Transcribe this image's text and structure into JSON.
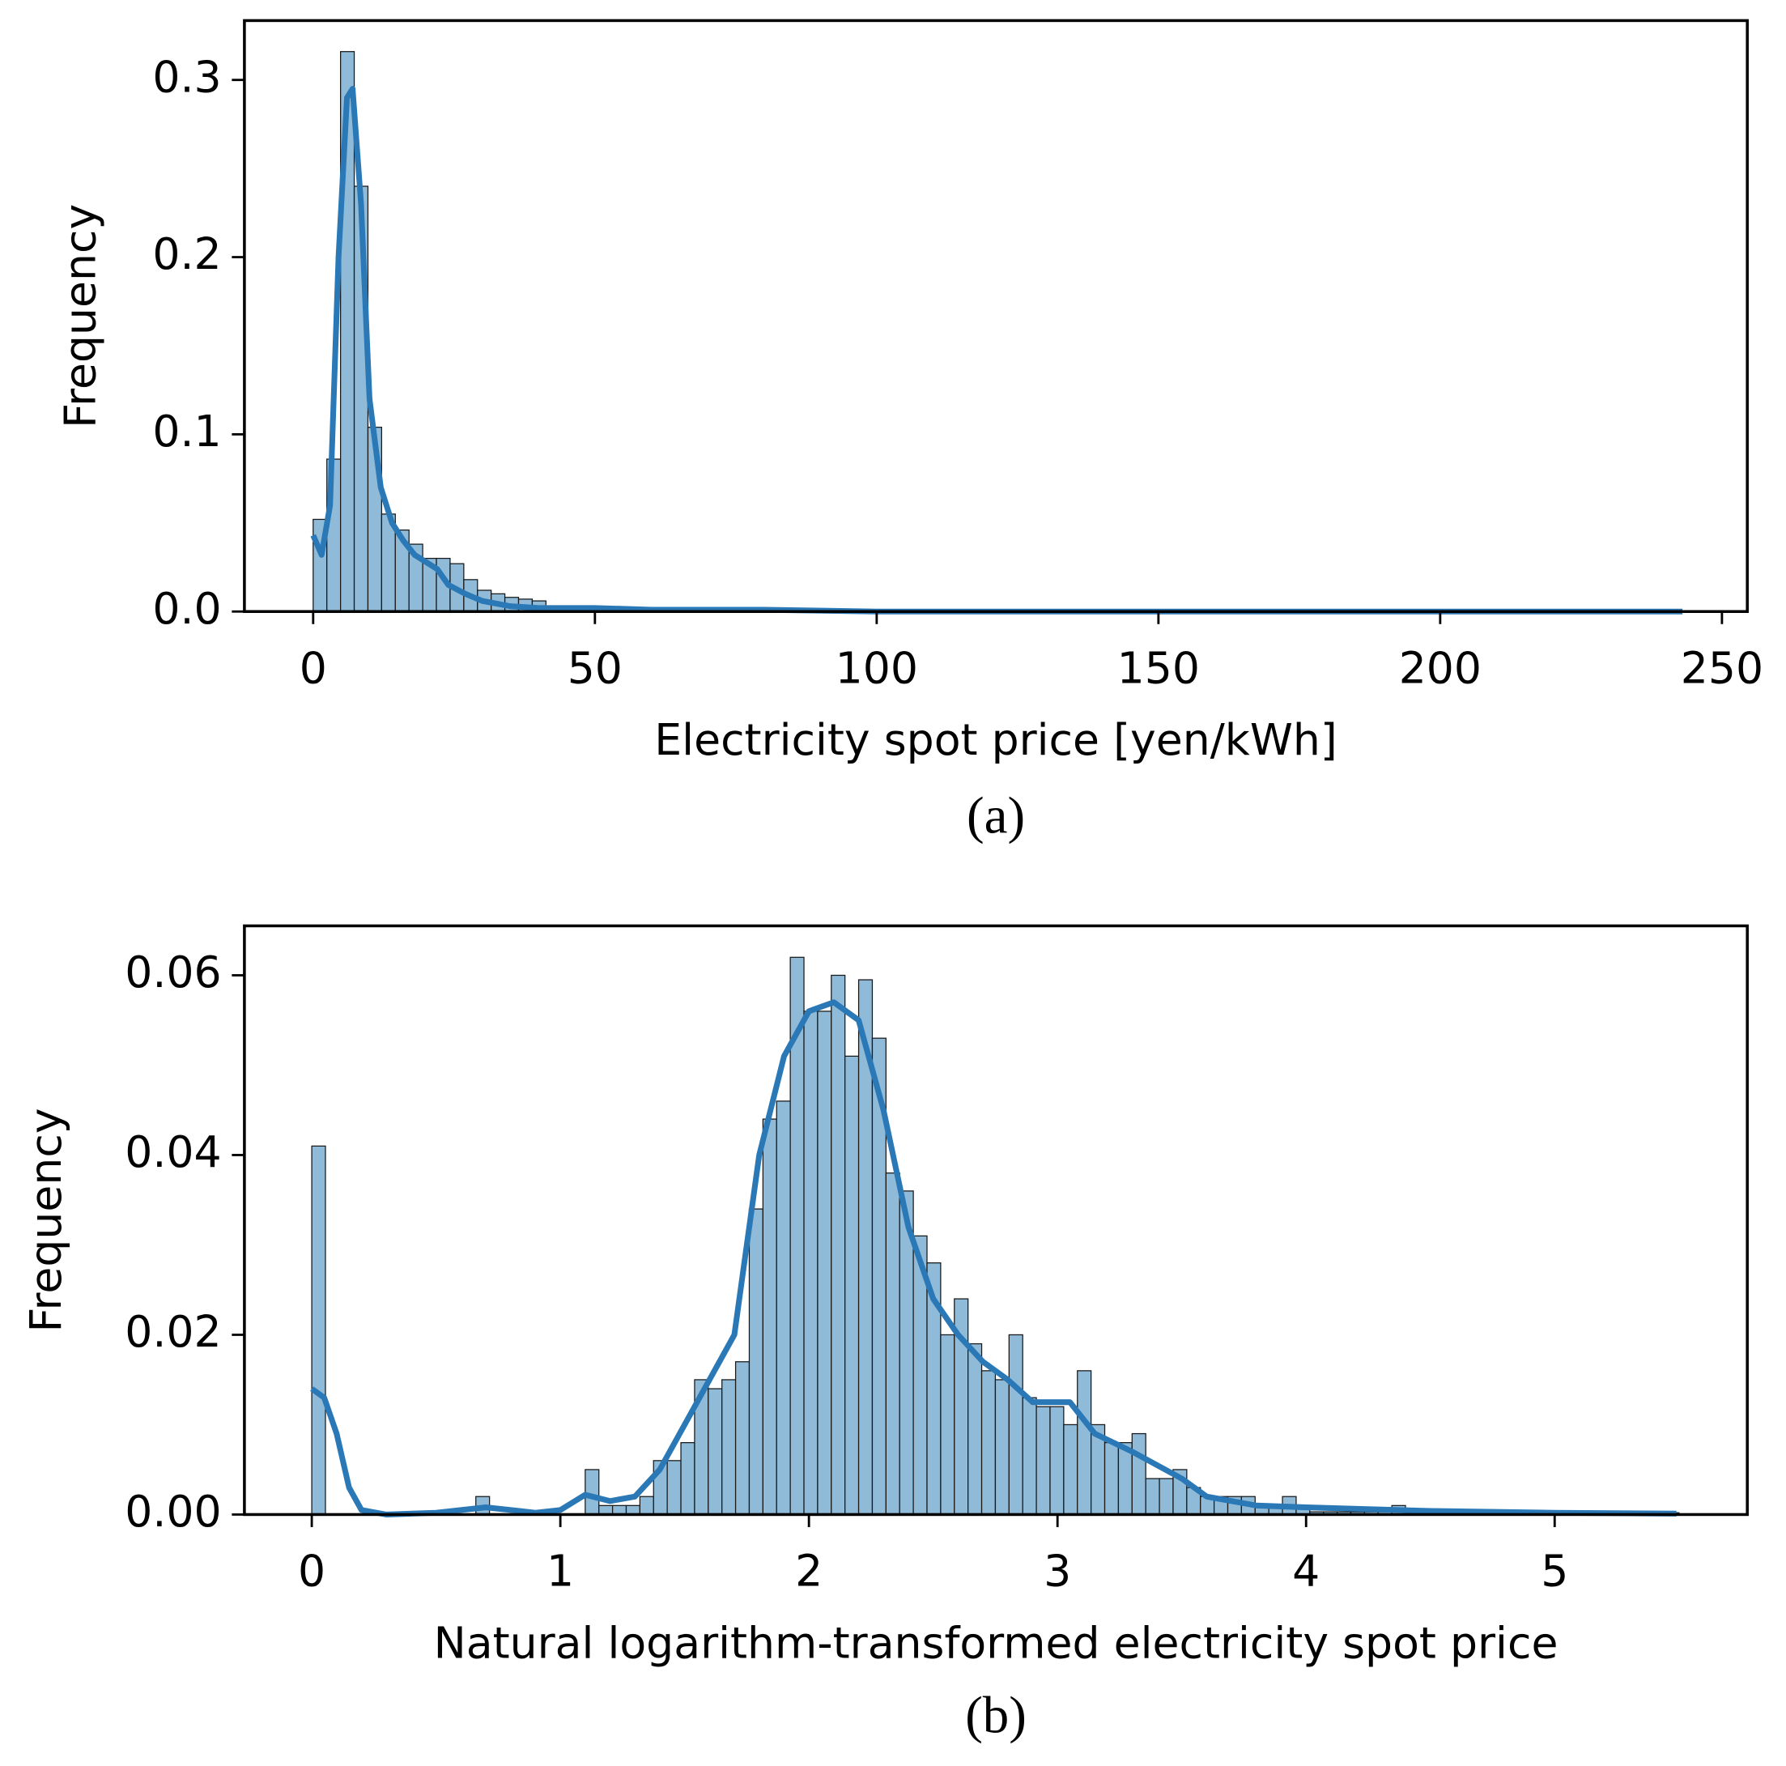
{
  "chart_data": [
    {
      "type": "histogram",
      "caption": "(a)",
      "xlabel": "Electricity spot price [yen/kWh]",
      "ylabel": "Frequency",
      "bins": [
        0,
        2.43,
        4.86,
        7.29,
        9.72,
        12.15,
        14.58,
        17.01,
        19.44,
        21.87,
        24.3,
        26.73,
        29.16,
        31.59,
        34.02,
        36.45,
        38.88,
        41.31,
        43.74,
        46.17,
        48.6,
        51.03,
        53.46,
        55.89,
        58.32,
        60.75
      ],
      "values": [
        0.052,
        0.086,
        0.316,
        0.24,
        0.104,
        0.055,
        0.046,
        0.038,
        0.03,
        0.03,
        0.027,
        0.018,
        0.012,
        0.01,
        0.008,
        0.007,
        0.006,
        0.003,
        0.002,
        0.002,
        0.001,
        0.001,
        0.001,
        0.0005,
        0.0005
      ],
      "color": "#8fbbd9",
      "kde": {
        "color": "#2a78b6",
        "x": [
          0,
          1.5,
          3,
          4.5,
          6,
          7,
          8.5,
          10,
          12,
          14,
          16,
          18,
          20,
          22,
          24,
          27,
          30,
          35,
          40,
          50,
          60,
          80,
          100,
          243
        ],
        "values": [
          0.043,
          0.032,
          0.06,
          0.2,
          0.29,
          0.295,
          0.23,
          0.12,
          0.07,
          0.05,
          0.04,
          0.032,
          0.028,
          0.024,
          0.015,
          0.01,
          0.006,
          0.003,
          0.002,
          0.002,
          0.001,
          0.001,
          0,
          0
        ]
      },
      "xlim": [
        -12.2,
        254.5
      ],
      "ylim": [
        0,
        0.3335
      ],
      "xticks": [
        0,
        50,
        100,
        150,
        200,
        250
      ],
      "yticks": [
        {
          "value": 0,
          "label": "0.0"
        },
        0.1,
        0.2,
        0.3
      ]
    },
    {
      "type": "histogram",
      "caption": "(b)",
      "xlabel": "Natural logarithm-transformed electricity spot price",
      "ylabel": "Frequency",
      "bins": [
        0,
        0.055,
        0.11,
        0.165,
        0.22,
        0.275,
        0.33,
        0.385,
        0.44,
        0.495,
        0.55,
        0.605,
        0.66,
        0.715,
        0.77,
        0.825,
        0.88,
        0.935,
        0.99,
        1.045,
        1.1,
        1.155,
        1.21,
        1.265,
        1.32,
        1.375,
        1.43,
        1.485,
        1.54,
        1.595,
        1.65,
        1.705,
        1.76,
        1.815,
        1.87,
        1.925,
        1.98,
        2.035,
        2.09,
        2.145,
        2.2,
        2.255,
        2.31,
        2.365,
        2.42,
        2.475,
        2.53,
        2.585,
        2.64,
        2.695,
        2.75,
        2.805,
        2.86,
        2.915,
        2.97,
        3.025,
        3.08,
        3.135,
        3.19,
        3.245,
        3.3,
        3.355,
        3.41,
        3.465,
        3.52,
        3.575,
        3.63,
        3.685,
        3.74,
        3.795,
        3.85,
        3.905,
        3.96,
        4.015,
        4.07,
        4.125,
        4.18,
        4.235,
        4.29,
        4.345,
        4.4,
        4.455,
        4.51,
        4.565,
        4.62,
        4.675,
        4.73,
        4.785,
        4.84,
        4.895,
        4.95,
        5.005,
        5.06,
        5.115,
        5.17,
        5.225,
        5.28,
        5.335,
        5.39,
        5.445,
        5.5
      ],
      "values": [
        0.041,
        0,
        0,
        0,
        0,
        0,
        0,
        0,
        0,
        0,
        0,
        0,
        0.002,
        0,
        0,
        0,
        0,
        0,
        0,
        0,
        0.005,
        0.001,
        0.001,
        0.001,
        0.002,
        0.006,
        0.006,
        0.008,
        0.015,
        0.014,
        0.015,
        0.017,
        0.034,
        0.044,
        0.046,
        0.062,
        0.056,
        0.056,
        0.06,
        0.051,
        0.0595,
        0.053,
        0.038,
        0.036,
        0.031,
        0.028,
        0.02,
        0.024,
        0.019,
        0.016,
        0.015,
        0.02,
        0.013,
        0.012,
        0.012,
        0.01,
        0.016,
        0.01,
        0.008,
        0.008,
        0.009,
        0.004,
        0.004,
        0.005,
        0.003,
        0.002,
        0.002,
        0.002,
        0.002,
        0.001,
        0.001,
        0.002,
        0.001,
        0.0003,
        0.0003,
        0.0003,
        0.0003,
        0.0003,
        0.0003,
        0.001,
        0.0002,
        0.0002,
        0.0002,
        0.0002,
        0.0002,
        0.0002,
        0.0002,
        0.0002,
        0.0002,
        0.0002,
        0.0002,
        0.0002,
        0.0002,
        0.0002,
        0.0002,
        0.0002,
        0.0002,
        0.0002,
        0.0002,
        0.0002
      ],
      "color": "#8fbbd9",
      "kde": {
        "color": "#2a78b6",
        "x": [
          0,
          0.05,
          0.1,
          0.15,
          0.2,
          0.3,
          0.5,
          0.7,
          0.9,
          1.0,
          1.1,
          1.2,
          1.3,
          1.4,
          1.5,
          1.6,
          1.7,
          1.8,
          1.9,
          2.0,
          2.1,
          2.2,
          2.3,
          2.4,
          2.5,
          2.6,
          2.7,
          2.8,
          2.9,
          3.0,
          3.05,
          3.15,
          3.3,
          3.5,
          3.6,
          3.8,
          4.0,
          4.5,
          5.0,
          5.49
        ],
        "values": [
          0.014,
          0.013,
          0.009,
          0.003,
          0.0005,
          0,
          0.0002,
          0.0008,
          0.0002,
          0.0005,
          0.0022,
          0.0015,
          0.002,
          0.005,
          0.01,
          0.015,
          0.02,
          0.04,
          0.051,
          0.056,
          0.057,
          0.055,
          0.045,
          0.032,
          0.024,
          0.02,
          0.017,
          0.015,
          0.0125,
          0.0125,
          0.0125,
          0.009,
          0.007,
          0.004,
          0.002,
          0.001,
          0.0008,
          0.0004,
          0.0002,
          0.0001
        ]
      },
      "xlim": [
        -0.271,
        5.775
      ],
      "ylim": [
        0,
        0.0655
      ],
      "xticks": [
        0,
        1,
        2,
        3,
        4,
        5
      ],
      "yticks": [
        {
          "value": 0,
          "label": "0.00"
        },
        0.02,
        0.04,
        0.06
      ]
    }
  ]
}
